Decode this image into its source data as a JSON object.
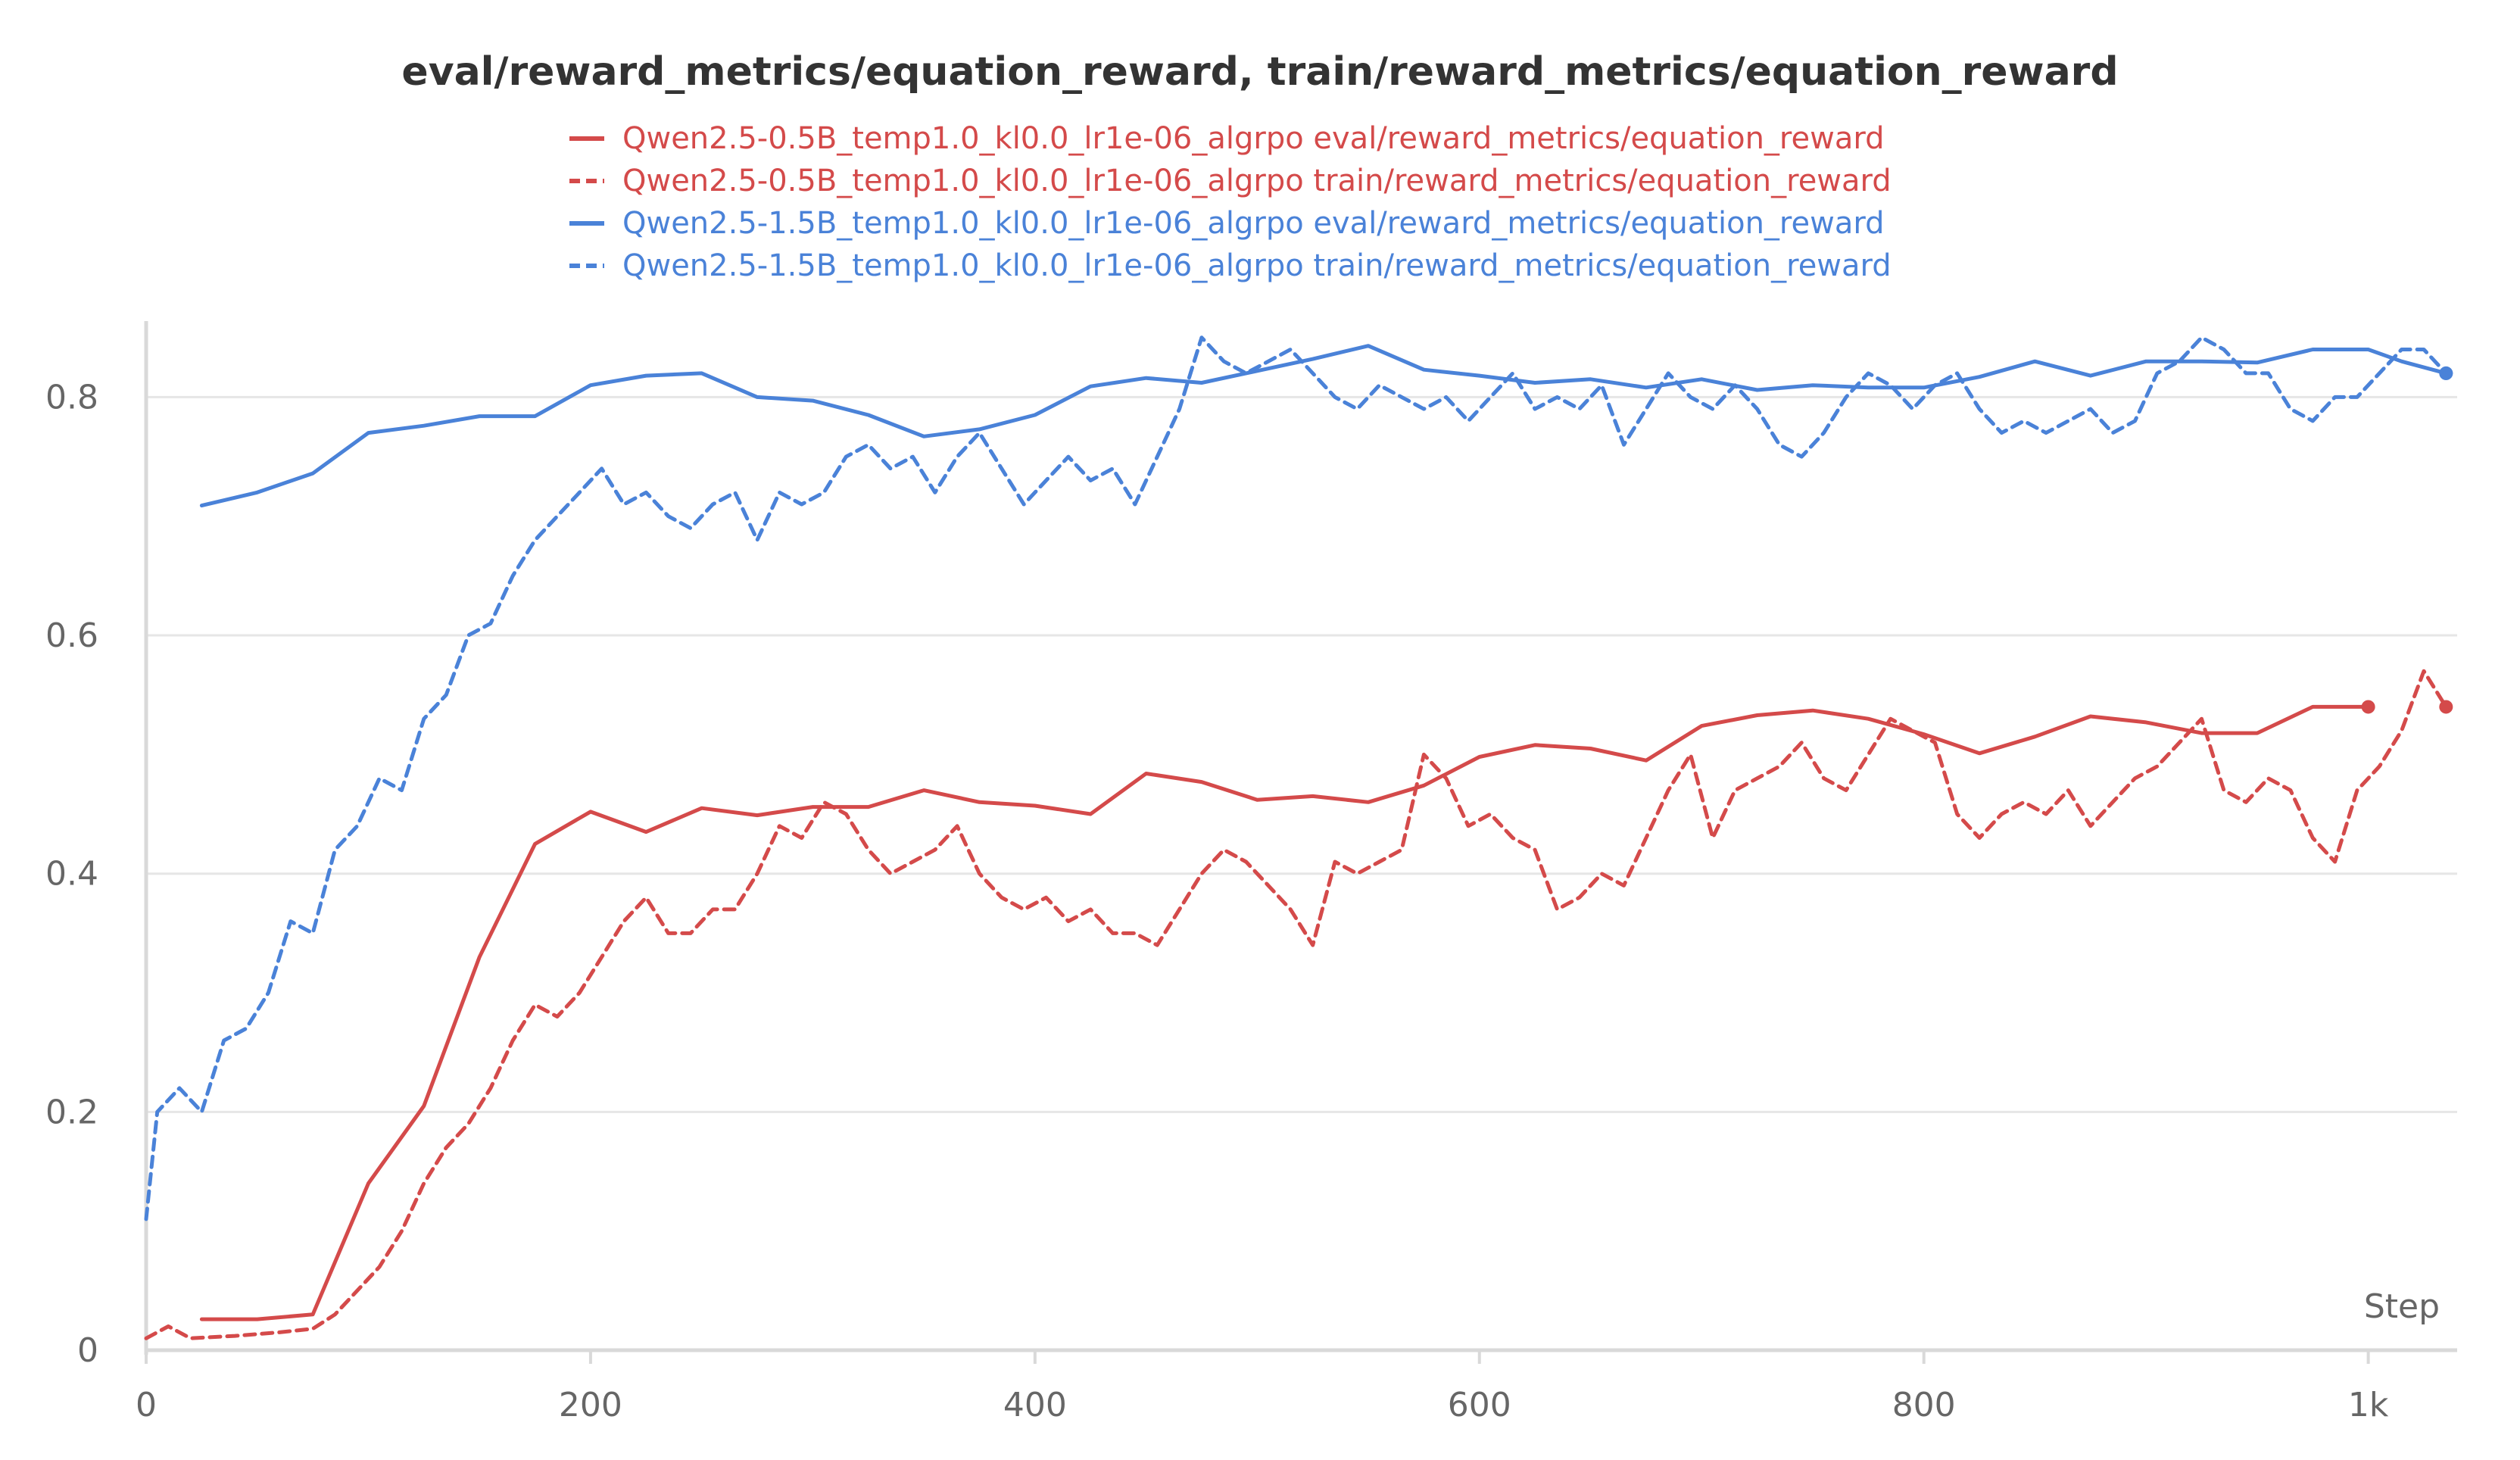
{
  "chart_data": {
    "type": "line",
    "title": "eval/reward_metrics/equation_reward, train/reward_metrics/equation_reward",
    "xlabel": "Step",
    "ylabel": "",
    "xlim": [
      0,
      1040
    ],
    "ylim": [
      0,
      0.86
    ],
    "x_ticks": [
      {
        "value": 0,
        "label": "0"
      },
      {
        "value": 200,
        "label": "200"
      },
      {
        "value": 400,
        "label": "400"
      },
      {
        "value": 600,
        "label": "600"
      },
      {
        "value": 800,
        "label": "800"
      },
      {
        "value": 1000,
        "label": "1k"
      }
    ],
    "y_ticks": [
      {
        "value": 0,
        "label": "0"
      },
      {
        "value": 0.2,
        "label": "0.2"
      },
      {
        "value": 0.4,
        "label": "0.4"
      },
      {
        "value": 0.6,
        "label": "0.6"
      },
      {
        "value": 0.8,
        "label": "0.8"
      }
    ],
    "grid": "horizontal",
    "legend_position": "top-center",
    "series": [
      {
        "name": "Qwen2.5-0.5B_temp1.0_kl0.0_lr1e-06_algrpo eval/reward_metrics/equation_reward",
        "color": "#d44a4a",
        "style": "solid",
        "x": [
          25,
          50,
          75,
          100,
          125,
          150,
          175,
          200,
          225,
          250,
          275,
          300,
          325,
          350,
          375,
          400,
          425,
          450,
          475,
          500,
          525,
          550,
          575,
          600,
          625,
          650,
          675,
          700,
          725,
          750,
          775,
          800,
          825,
          850,
          875,
          900,
          925,
          950,
          975,
          1000
        ],
        "y": [
          0.026,
          0.026,
          0.03,
          0.14,
          0.205,
          0.33,
          0.425,
          0.452,
          0.435,
          0.455,
          0.449,
          0.456,
          0.456,
          0.47,
          0.46,
          0.457,
          0.45,
          0.484,
          0.477,
          0.462,
          0.465,
          0.46,
          0.474,
          0.498,
          0.508,
          0.505,
          0.495,
          0.524,
          0.533,
          0.537,
          0.53,
          0.517,
          0.501,
          0.515,
          0.532,
          0.527,
          0.518,
          0.518,
          0.54,
          0.54
        ]
      },
      {
        "name": "Qwen2.5-0.5B_temp1.0_kl0.0_lr1e-06_algrpo train/reward_metrics/equation_reward",
        "color": "#d44a4a",
        "style": "dashed",
        "x": [
          0,
          10,
          20,
          40,
          60,
          75,
          85,
          95,
          105,
          115,
          125,
          135,
          145,
          155,
          165,
          175,
          185,
          195,
          205,
          215,
          225,
          235,
          245,
          255,
          265,
          275,
          285,
          295,
          305,
          315,
          325,
          335,
          345,
          355,
          365,
          375,
          385,
          395,
          405,
          415,
          425,
          435,
          445,
          455,
          465,
          475,
          485,
          495,
          505,
          515,
          525,
          535,
          545,
          555,
          565,
          575,
          585,
          595,
          605,
          615,
          625,
          635,
          645,
          655,
          665,
          675,
          685,
          695,
          705,
          715,
          725,
          735,
          745,
          755,
          765,
          775,
          785,
          795,
          805,
          815,
          825,
          835,
          845,
          855,
          865,
          875,
          885,
          895,
          905,
          915,
          925,
          935,
          945,
          955,
          965,
          975,
          985,
          995,
          1005,
          1015,
          1025,
          1035
        ],
        "y": [
          0.01,
          0.02,
          0.01,
          0.012,
          0.015,
          0.018,
          0.03,
          0.05,
          0.07,
          0.1,
          0.14,
          0.17,
          0.19,
          0.22,
          0.26,
          0.29,
          0.28,
          0.3,
          0.33,
          0.36,
          0.38,
          0.35,
          0.35,
          0.37,
          0.37,
          0.4,
          0.44,
          0.43,
          0.46,
          0.45,
          0.42,
          0.4,
          0.41,
          0.42,
          0.44,
          0.4,
          0.38,
          0.37,
          0.38,
          0.36,
          0.37,
          0.35,
          0.35,
          0.34,
          0.37,
          0.4,
          0.42,
          0.41,
          0.39,
          0.37,
          0.34,
          0.41,
          0.4,
          0.41,
          0.42,
          0.5,
          0.48,
          0.44,
          0.45,
          0.43,
          0.42,
          0.37,
          0.38,
          0.4,
          0.39,
          0.43,
          0.47,
          0.5,
          0.43,
          0.47,
          0.48,
          0.49,
          0.51,
          0.48,
          0.47,
          0.5,
          0.53,
          0.52,
          0.51,
          0.45,
          0.43,
          0.45,
          0.46,
          0.45,
          0.47,
          0.44,
          0.46,
          0.48,
          0.49,
          0.51,
          0.53,
          0.47,
          0.46,
          0.48,
          0.47,
          0.43,
          0.41,
          0.47,
          0.49,
          0.52,
          0.57,
          0.54
        ]
      },
      {
        "name": "Qwen2.5-1.5B_temp1.0_kl0.0_lr1e-06_algrpo eval/reward_metrics/equation_reward",
        "color": "#4a82d8",
        "style": "solid",
        "x": [
          25,
          50,
          75,
          100,
          125,
          150,
          175,
          200,
          225,
          250,
          275,
          300,
          325,
          350,
          375,
          400,
          425,
          450,
          475,
          500,
          525,
          550,
          575,
          600,
          625,
          650,
          675,
          700,
          725,
          750,
          775,
          800,
          825,
          850,
          875,
          900,
          925,
          950,
          975,
          1000,
          1015,
          1035
        ],
        "y": [
          0.709,
          0.72,
          0.736,
          0.77,
          0.776,
          0.784,
          0.784,
          0.81,
          0.818,
          0.82,
          0.8,
          0.797,
          0.785,
          0.767,
          0.773,
          0.785,
          0.809,
          0.816,
          0.812,
          0.822,
          0.832,
          0.843,
          0.823,
          0.818,
          0.812,
          0.815,
          0.808,
          0.815,
          0.806,
          0.81,
          0.808,
          0.808,
          0.817,
          0.83,
          0.818,
          0.83,
          0.83,
          0.829,
          0.84,
          0.84,
          0.83,
          0.82
        ]
      },
      {
        "name": "Qwen2.5-1.5B_temp1.0_kl0.0_lr1e-06_algrpo train/reward_metrics/equation_reward",
        "color": "#4a82d8",
        "style": "dashed",
        "x": [
          0,
          5,
          15,
          25,
          35,
          45,
          55,
          65,
          75,
          85,
          95,
          105,
          115,
          125,
          135,
          145,
          155,
          165,
          175,
          185,
          195,
          205,
          215,
          225,
          235,
          245,
          255,
          265,
          275,
          285,
          295,
          305,
          315,
          325,
          335,
          345,
          355,
          365,
          375,
          385,
          395,
          405,
          415,
          425,
          435,
          445,
          455,
          465,
          475,
          485,
          495,
          505,
          515,
          525,
          535,
          545,
          555,
          565,
          575,
          585,
          595,
          605,
          615,
          625,
          635,
          645,
          655,
          665,
          675,
          685,
          695,
          705,
          715,
          725,
          735,
          745,
          755,
          765,
          775,
          785,
          795,
          805,
          815,
          825,
          835,
          845,
          855,
          865,
          875,
          885,
          895,
          905,
          915,
          925,
          935,
          945,
          955,
          965,
          975,
          985,
          995,
          1005,
          1015,
          1025,
          1035
        ],
        "y": [
          0.11,
          0.2,
          0.22,
          0.2,
          0.26,
          0.27,
          0.3,
          0.36,
          0.35,
          0.42,
          0.44,
          0.48,
          0.47,
          0.53,
          0.55,
          0.6,
          0.61,
          0.65,
          0.68,
          0.7,
          0.72,
          0.74,
          0.71,
          0.72,
          0.7,
          0.69,
          0.71,
          0.72,
          0.68,
          0.72,
          0.71,
          0.72,
          0.75,
          0.76,
          0.74,
          0.75,
          0.72,
          0.75,
          0.77,
          0.74,
          0.71,
          0.73,
          0.75,
          0.73,
          0.74,
          0.71,
          0.75,
          0.79,
          0.85,
          0.83,
          0.82,
          0.83,
          0.84,
          0.82,
          0.8,
          0.79,
          0.81,
          0.8,
          0.79,
          0.8,
          0.78,
          0.8,
          0.82,
          0.79,
          0.8,
          0.79,
          0.81,
          0.76,
          0.79,
          0.82,
          0.8,
          0.79,
          0.81,
          0.79,
          0.76,
          0.75,
          0.77,
          0.8,
          0.82,
          0.81,
          0.79,
          0.81,
          0.82,
          0.79,
          0.77,
          0.78,
          0.77,
          0.78,
          0.79,
          0.77,
          0.78,
          0.82,
          0.83,
          0.85,
          0.84,
          0.82,
          0.82,
          0.79,
          0.78,
          0.8,
          0.8,
          0.82,
          0.84,
          0.84,
          0.82
        ]
      }
    ]
  }
}
